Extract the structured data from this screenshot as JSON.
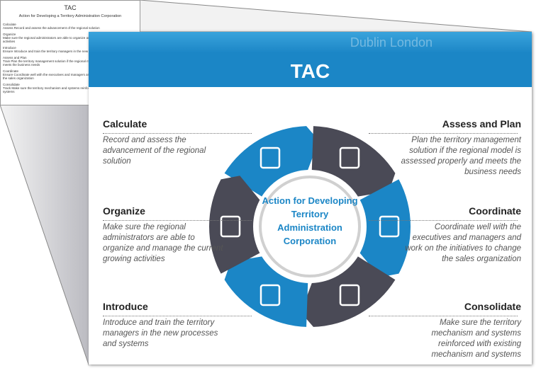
{
  "thumbnail": {
    "title": "TAC",
    "subtitle": "Action for Developing a Territory Administration Corporation",
    "items": [
      {
        "label": "Calculate",
        "text": "Assess Record and assess the advancement of the regional solution"
      },
      {
        "label": "Organize",
        "text": "Make sure the regional administrators are able to organize and manage the current growing activities"
      },
      {
        "label": "Introduce",
        "text": "Ensure Introduce and train the territory managers in the new processes and systems"
      },
      {
        "label": "Assess and Plan",
        "text": "Train Plan the territory management solution if the regional model is assessed properly and meets the business needs"
      },
      {
        "label": "Coordinate",
        "text": "Ensure Coordinate well with the executives and managers and work on the initiatives to change the sales organization"
      },
      {
        "label": "Consolidate",
        "text": "Track Make sure the territory mechanism and systems reinforced with existing mechanism and systems"
      }
    ]
  },
  "slide": {
    "banner": "Dublin London",
    "title": "TAC",
    "center": "Action for Developing Territory Administration Corporation",
    "left": [
      {
        "heading": "Calculate",
        "text": "Record and assess the advancement of the regional solution"
      },
      {
        "heading": "Organize",
        "text": "Make sure the regional administrators are able to organize and manage the current growing activities"
      },
      {
        "heading": "Introduce",
        "text": "Introduce and train the territory managers in the new processes and systems"
      }
    ],
    "right": [
      {
        "heading": "Assess and Plan",
        "text": "Plan the territory management solution if the regional model is assessed properly and meets the business needs"
      },
      {
        "heading": "Coordinate",
        "text": "Coordinate well with the executives and managers and work on the initiatives to change the sales organization"
      },
      {
        "heading": "Consolidate",
        "text": "Make sure the territory mechanism and systems reinforced with existing mechanism and systems"
      }
    ]
  }
}
